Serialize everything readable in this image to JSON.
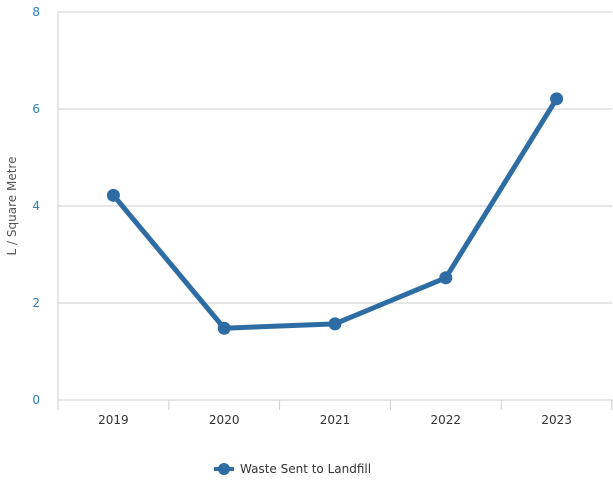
{
  "chart_data": {
    "type": "line",
    "title": "",
    "xlabel": "",
    "ylabel": "L / Square Metre",
    "categories": [
      "2019",
      "2020",
      "2021",
      "2022",
      "2023"
    ],
    "series": [
      {
        "name": "Waste Sent to Landfill",
        "values": [
          4.22,
          1.48,
          1.57,
          2.52,
          6.21
        ],
        "color": "#2e6da4"
      }
    ],
    "ylim": [
      0,
      8
    ],
    "yticks": [
      0,
      2,
      4,
      6,
      8
    ],
    "grid": true,
    "legend": "bottom-center"
  }
}
